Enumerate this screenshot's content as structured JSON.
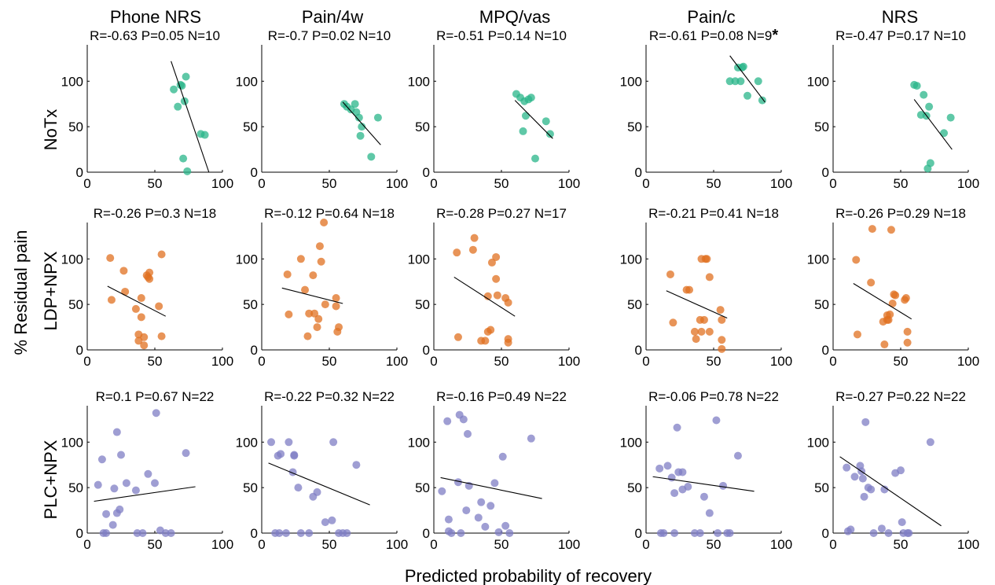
{
  "colors": {
    "noTx": "#2ab68a",
    "ldp": "#e07020",
    "plc": "#7f7ec4"
  },
  "figure": {
    "column_titles": [
      "Phone NRS",
      "Pain/4w",
      "MPQ/vas",
      "Pain/c",
      "NRS"
    ],
    "row_labels": [
      "NoTx",
      "LDP+NPX",
      "PLC+NPX"
    ],
    "y_label": "% Residual pain",
    "x_label": "Predicted probability of recovery"
  },
  "chart_data": [
    {
      "type": "scatter",
      "row": 0,
      "col": 0,
      "series": "NoTx",
      "title": "R=-0.63 P=0.05 N=10",
      "xlim": [
        0,
        100
      ],
      "ylim": [
        0,
        140
      ],
      "xticks": [
        "0",
        "50",
        "100"
      ],
      "yticks": [
        "0",
        "50",
        "100"
      ],
      "points": [
        [
          64,
          91
        ],
        [
          67,
          72
        ],
        [
          69,
          96
        ],
        [
          73,
          105
        ],
        [
          71,
          15
        ],
        [
          74,
          1
        ],
        [
          84,
          42
        ],
        [
          87,
          41
        ],
        [
          72,
          78
        ],
        [
          70,
          95
        ]
      ],
      "fit": [
        [
          62,
          122
        ],
        [
          90,
          0
        ]
      ]
    },
    {
      "type": "scatter",
      "row": 0,
      "col": 1,
      "series": "NoTx",
      "title": "R=-0.7 P=0.02 N=10",
      "xlim": [
        0,
        100
      ],
      "ylim": [
        0,
        140
      ],
      "xticks": [
        "0",
        "50",
        "100"
      ],
      "yticks": [
        "0",
        "50",
        "100"
      ],
      "points": [
        [
          61,
          75
        ],
        [
          63,
          72
        ],
        [
          66,
          69
        ],
        [
          69,
          75
        ],
        [
          70,
          66
        ],
        [
          72,
          60
        ],
        [
          74,
          50
        ],
        [
          73,
          40
        ],
        [
          81,
          17
        ],
        [
          86,
          60
        ]
      ],
      "fit": [
        [
          60,
          77
        ],
        [
          88,
          30
        ]
      ]
    },
    {
      "type": "scatter",
      "row": 0,
      "col": 2,
      "series": "NoTx",
      "title": "R=-0.51 P=0.14 N=10",
      "xlim": [
        0,
        100
      ],
      "ylim": [
        0,
        140
      ],
      "xticks": [
        "0",
        "50",
        "100"
      ],
      "yticks": [
        "0",
        "50",
        "100"
      ],
      "points": [
        [
          61,
          86
        ],
        [
          64,
          82
        ],
        [
          67,
          78
        ],
        [
          70,
          80
        ],
        [
          72,
          82
        ],
        [
          68,
          62
        ],
        [
          66,
          45
        ],
        [
          75,
          15
        ],
        [
          83,
          56
        ],
        [
          86,
          42
        ]
      ],
      "fit": [
        [
          60,
          79
        ],
        [
          88,
          37
        ]
      ]
    },
    {
      "type": "scatter",
      "row": 0,
      "col": 3,
      "series": "NoTx",
      "title": "R=-0.61 P=0.08 N=9",
      "title_mark": "*",
      "xlim": [
        0,
        100
      ],
      "ylim": [
        0,
        140
      ],
      "xticks": [
        "0",
        "50",
        "100"
      ],
      "yticks": [
        "0",
        "50",
        "100"
      ],
      "points": [
        [
          62,
          100
        ],
        [
          66,
          100
        ],
        [
          68,
          115
        ],
        [
          70,
          100
        ],
        [
          71,
          115
        ],
        [
          72,
          116
        ],
        [
          75,
          84
        ],
        [
          83,
          100
        ],
        [
          86,
          79
        ]
      ],
      "fit": [
        [
          62,
          128
        ],
        [
          88,
          77
        ]
      ]
    },
    {
      "type": "scatter",
      "row": 0,
      "col": 4,
      "series": "NoTx",
      "title": "R=-0.47 P=0.17 N=10",
      "xlim": [
        0,
        100
      ],
      "ylim": [
        0,
        140
      ],
      "xticks": [
        "0",
        "50",
        "100"
      ],
      "yticks": [
        "0",
        "50",
        "100"
      ],
      "points": [
        [
          60,
          96
        ],
        [
          62,
          95
        ],
        [
          67,
          85
        ],
        [
          65,
          63
        ],
        [
          69,
          62
        ],
        [
          71,
          72
        ],
        [
          72,
          10
        ],
        [
          70,
          4
        ],
        [
          82,
          43
        ],
        [
          87,
          60
        ]
      ],
      "fit": [
        [
          60,
          80
        ],
        [
          88,
          25
        ]
      ]
    },
    {
      "type": "scatter",
      "row": 1,
      "col": 0,
      "series": "LDP+NPX",
      "title": "R=-0.26 P=0.3 N=18",
      "xlim": [
        0,
        100
      ],
      "ylim": [
        0,
        140
      ],
      "xticks": [
        "0",
        "50",
        "100"
      ],
      "yticks": [
        "0",
        "50",
        "100"
      ],
      "points": [
        [
          17,
          101
        ],
        [
          18,
          55
        ],
        [
          27,
          87
        ],
        [
          28,
          64
        ],
        [
          36,
          45
        ],
        [
          38,
          17
        ],
        [
          38,
          10
        ],
        [
          40,
          36
        ],
        [
          40,
          57
        ],
        [
          42,
          14
        ],
        [
          42,
          5
        ],
        [
          44,
          82
        ],
        [
          45,
          80
        ],
        [
          46,
          85
        ],
        [
          46,
          78
        ],
        [
          53,
          48
        ],
        [
          55,
          105
        ],
        [
          55,
          15
        ]
      ],
      "fit": [
        [
          15,
          70
        ],
        [
          58,
          37
        ]
      ]
    },
    {
      "type": "scatter",
      "row": 1,
      "col": 1,
      "series": "LDP+NPX",
      "title": "R=-0.12 P=0.64 N=18",
      "xlim": [
        0,
        100
      ],
      "ylim": [
        0,
        140
      ],
      "xticks": [
        "0",
        "50",
        "100"
      ],
      "yticks": [
        "0",
        "50",
        "100"
      ],
      "points": [
        [
          19,
          83
        ],
        [
          20,
          39
        ],
        [
          29,
          100
        ],
        [
          32,
          66
        ],
        [
          34,
          15
        ],
        [
          35,
          40
        ],
        [
          38,
          82
        ],
        [
          39,
          40
        ],
        [
          41,
          25
        ],
        [
          42,
          34
        ],
        [
          43,
          114
        ],
        [
          44,
          97
        ],
        [
          46,
          140
        ],
        [
          47,
          50
        ],
        [
          55,
          57
        ],
        [
          55,
          48
        ],
        [
          57,
          25
        ],
        [
          56,
          20
        ]
      ],
      "fit": [
        [
          15,
          68
        ],
        [
          60,
          51
        ]
      ]
    },
    {
      "type": "scatter",
      "row": 1,
      "col": 2,
      "series": "LDP+NPX",
      "title": "R=-0.28 P=0.27 N=17",
      "xlim": [
        0,
        100
      ],
      "ylim": [
        0,
        140
      ],
      "xticks": [
        "0",
        "50",
        "100"
      ],
      "yticks": [
        "0",
        "50",
        "100"
      ],
      "points": [
        [
          17,
          107
        ],
        [
          18,
          14
        ],
        [
          29,
          110
        ],
        [
          30,
          123
        ],
        [
          35,
          10
        ],
        [
          38,
          10
        ],
        [
          40,
          59
        ],
        [
          40,
          20
        ],
        [
          42,
          22
        ],
        [
          43,
          96
        ],
        [
          46,
          102
        ],
        [
          46,
          78
        ],
        [
          47,
          60
        ],
        [
          53,
          57
        ],
        [
          55,
          52
        ],
        [
          55,
          12
        ],
        [
          55,
          8
        ]
      ],
      "fit": [
        [
          15,
          80
        ],
        [
          60,
          37
        ]
      ]
    },
    {
      "type": "scatter",
      "row": 1,
      "col": 3,
      "series": "LDP+NPX",
      "title": "R=-0.21 P=0.41 N=18",
      "xlim": [
        0,
        100
      ],
      "ylim": [
        0,
        140
      ],
      "xticks": [
        "0",
        "50",
        "100"
      ],
      "yticks": [
        "0",
        "50",
        "100"
      ],
      "points": [
        [
          18,
          83
        ],
        [
          20,
          30
        ],
        [
          30,
          66
        ],
        [
          32,
          66
        ],
        [
          36,
          20
        ],
        [
          37,
          12
        ],
        [
          40,
          33
        ],
        [
          41,
          20
        ],
        [
          41,
          100
        ],
        [
          43,
          33
        ],
        [
          44,
          100
        ],
        [
          45,
          100
        ],
        [
          47,
          80
        ],
        [
          47,
          20
        ],
        [
          55,
          44
        ],
        [
          56,
          33
        ],
        [
          56,
          11
        ],
        [
          56,
          1
        ]
      ],
      "fit": [
        [
          15,
          65
        ],
        [
          60,
          35
        ]
      ]
    },
    {
      "type": "scatter",
      "row": 1,
      "col": 4,
      "series": "LDP+NPX",
      "title": "R=-0.26 P=0.29 N=18",
      "xlim": [
        0,
        100
      ],
      "ylim": [
        0,
        140
      ],
      "xticks": [
        "0",
        "50",
        "100"
      ],
      "yticks": [
        "0",
        "50",
        "100"
      ],
      "points": [
        [
          17,
          99
        ],
        [
          18,
          17
        ],
        [
          28,
          74
        ],
        [
          29,
          133
        ],
        [
          37,
          31
        ],
        [
          38,
          6
        ],
        [
          40,
          38
        ],
        [
          40,
          33
        ],
        [
          41,
          33
        ],
        [
          42,
          39
        ],
        [
          43,
          132
        ],
        [
          44,
          51
        ],
        [
          45,
          61
        ],
        [
          46,
          60
        ],
        [
          53,
          55
        ],
        [
          54,
          57
        ],
        [
          55,
          20
        ],
        [
          55,
          8
        ]
      ],
      "fit": [
        [
          15,
          73
        ],
        [
          58,
          34
        ]
      ]
    },
    {
      "type": "scatter",
      "row": 2,
      "col": 0,
      "series": "PLC+NPX",
      "title": "R=0.1 P=0.67 N=22",
      "xlim": [
        0,
        100
      ],
      "ylim": [
        0,
        140
      ],
      "xticks": [
        "0",
        "50",
        "100"
      ],
      "yticks": [
        "0",
        "50",
        "100"
      ],
      "points": [
        [
          8,
          53
        ],
        [
          11,
          81
        ],
        [
          12,
          0
        ],
        [
          14,
          21
        ],
        [
          14,
          0
        ],
        [
          20,
          49
        ],
        [
          19,
          9
        ],
        [
          22,
          22
        ],
        [
          22,
          111
        ],
        [
          24,
          26
        ],
        [
          25,
          86
        ],
        [
          29,
          55
        ],
        [
          36,
          47
        ],
        [
          37,
          0
        ],
        [
          41,
          0
        ],
        [
          45,
          65
        ],
        [
          50,
          55
        ],
        [
          51,
          132
        ],
        [
          54,
          3
        ],
        [
          58,
          0
        ],
        [
          62,
          0
        ],
        [
          73,
          88
        ]
      ],
      "fit": [
        [
          5,
          35
        ],
        [
          80,
          51
        ]
      ]
    },
    {
      "type": "scatter",
      "row": 2,
      "col": 1,
      "series": "PLC+NPX",
      "title": "R=-0.22 P=0.32 N=22",
      "xlim": [
        0,
        100
      ],
      "ylim": [
        0,
        140
      ],
      "xticks": [
        "0",
        "50",
        "100"
      ],
      "yticks": [
        "0",
        "50",
        "100"
      ],
      "points": [
        [
          7,
          100
        ],
        [
          10,
          0
        ],
        [
          12,
          85
        ],
        [
          13,
          0
        ],
        [
          14,
          87
        ],
        [
          20,
          100
        ],
        [
          23,
          67
        ],
        [
          24,
          86
        ],
        [
          24,
          85
        ],
        [
          27,
          50
        ],
        [
          29,
          0
        ],
        [
          38,
          40
        ],
        [
          41,
          45
        ],
        [
          47,
          12
        ],
        [
          52,
          14
        ],
        [
          53,
          100
        ],
        [
          57,
          0
        ],
        [
          60,
          0
        ],
        [
          63,
          0
        ],
        [
          70,
          75
        ],
        [
          18,
          0
        ],
        [
          35,
          0
        ]
      ],
      "fit": [
        [
          5,
          77
        ],
        [
          80,
          31
        ]
      ]
    },
    {
      "type": "scatter",
      "row": 2,
      "col": 2,
      "series": "PLC+NPX",
      "title": "R=-0.16 P=0.49 N=22",
      "xlim": [
        0,
        100
      ],
      "ylim": [
        0,
        140
      ],
      "xticks": [
        "0",
        "50",
        "100"
      ],
      "yticks": [
        "0",
        "50",
        "100"
      ],
      "points": [
        [
          6,
          46
        ],
        [
          10,
          123
        ],
        [
          11,
          15
        ],
        [
          11,
          2
        ],
        [
          13,
          0
        ],
        [
          18,
          56
        ],
        [
          19,
          130
        ],
        [
          22,
          125
        ],
        [
          24,
          25
        ],
        [
          25,
          109
        ],
        [
          26,
          52
        ],
        [
          33,
          17
        ],
        [
          35,
          34
        ],
        [
          38,
          7
        ],
        [
          42,
          30
        ],
        [
          45,
          55
        ],
        [
          48,
          1
        ],
        [
          51,
          84
        ],
        [
          53,
          8
        ],
        [
          56,
          0
        ],
        [
          72,
          104
        ],
        [
          20,
          0
        ]
      ],
      "fit": [
        [
          5,
          61
        ],
        [
          80,
          38
        ]
      ]
    },
    {
      "type": "scatter",
      "row": 2,
      "col": 3,
      "series": "PLC+NPX",
      "title": "R=-0.06 P=0.78 N=22",
      "xlim": [
        0,
        100
      ],
      "ylim": [
        0,
        140
      ],
      "xticks": [
        "0",
        "50",
        "100"
      ],
      "yticks": [
        "0",
        "50",
        "100"
      ],
      "points": [
        [
          10,
          71
        ],
        [
          11,
          0
        ],
        [
          13,
          0
        ],
        [
          19,
          61
        ],
        [
          21,
          0
        ],
        [
          21,
          44
        ],
        [
          23,
          116
        ],
        [
          24,
          67
        ],
        [
          27,
          67
        ],
        [
          31,
          51
        ],
        [
          36,
          0
        ],
        [
          40,
          0
        ],
        [
          43,
          40
        ],
        [
          47,
          22
        ],
        [
          52,
          124
        ],
        [
          53,
          0
        ],
        [
          57,
          52
        ],
        [
          60,
          0
        ],
        [
          62,
          0
        ],
        [
          68,
          85
        ],
        [
          16,
          74
        ],
        [
          27,
          48
        ]
      ],
      "fit": [
        [
          5,
          62
        ],
        [
          80,
          46
        ]
      ]
    },
    {
      "type": "scatter",
      "row": 2,
      "col": 4,
      "series": "PLC+NPX",
      "title": "R=-0.27 P=0.22 N=22",
      "xlim": [
        0,
        100
      ],
      "ylim": [
        0,
        140
      ],
      "xticks": [
        "0",
        "50",
        "100"
      ],
      "yticks": [
        "0",
        "50",
        "100"
      ],
      "points": [
        [
          10,
          72
        ],
        [
          11,
          2
        ],
        [
          13,
          4
        ],
        [
          16,
          62
        ],
        [
          20,
          74
        ],
        [
          21,
          68
        ],
        [
          23,
          40
        ],
        [
          24,
          122
        ],
        [
          26,
          50
        ],
        [
          28,
          48
        ],
        [
          36,
          5
        ],
        [
          38,
          48
        ],
        [
          41,
          0
        ],
        [
          46,
          66
        ],
        [
          50,
          69
        ],
        [
          51,
          12
        ],
        [
          52,
          0
        ],
        [
          55,
          0
        ],
        [
          56,
          0
        ],
        [
          72,
          100
        ],
        [
          22,
          60
        ],
        [
          30,
          0
        ]
      ],
      "fit": [
        [
          5,
          84
        ],
        [
          80,
          8
        ]
      ]
    }
  ]
}
